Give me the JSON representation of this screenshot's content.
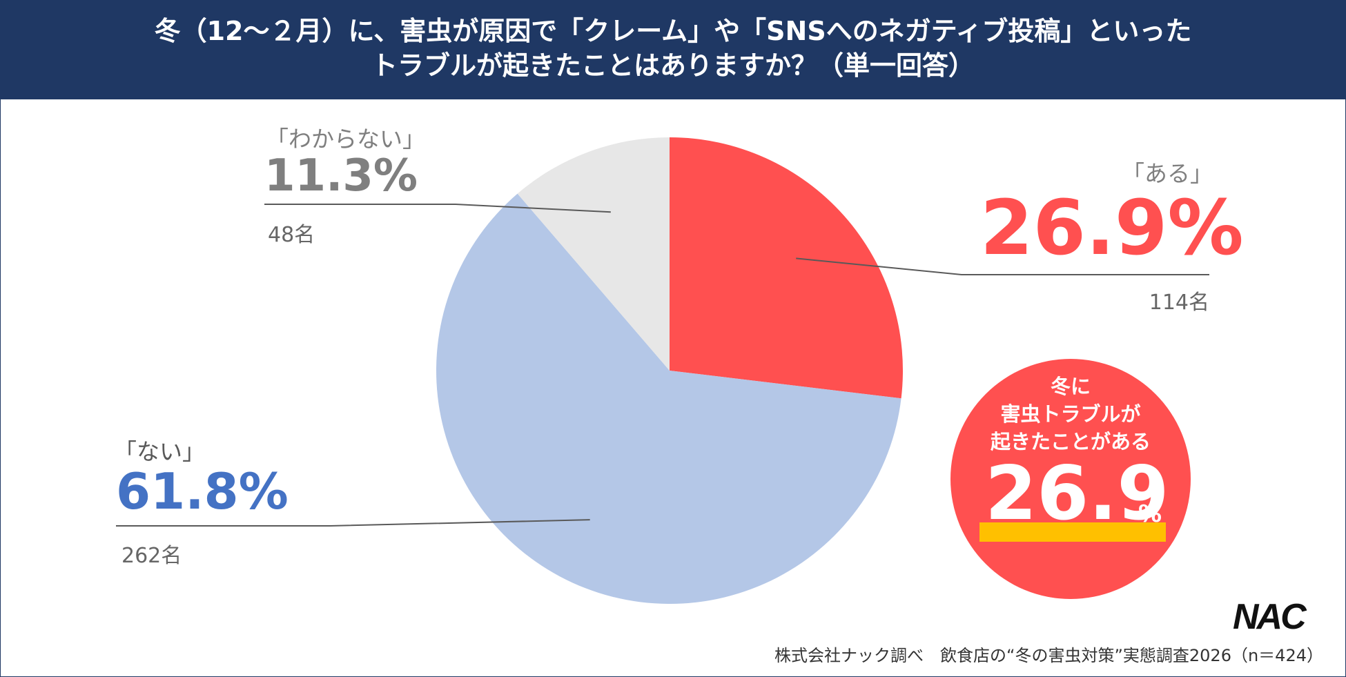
{
  "title": {
    "line1": "冬（12〜２月）に、害虫が原因で「クレーム」や「SNSへのネガティブ投稿」といった",
    "line2": "トラブルが起きたことはありますか？（単一回答）"
  },
  "chart_data": {
    "type": "pie",
    "title": "冬（12〜２月）に、害虫が原因で「クレーム」や「SNSへのネガティブ投稿」といったトラブルが起きたことはありますか？（単一回答）",
    "slices": [
      {
        "key": "aru",
        "label": "「ある」",
        "percent": 26.9,
        "percent_label": "26.9%",
        "count": 114,
        "count_label": "114名",
        "color": "#ff5050",
        "text_color": "#ff5050"
      },
      {
        "key": "nai",
        "label": "「ない」",
        "percent": 61.8,
        "percent_label": "61.8%",
        "count": 262,
        "count_label": "262名",
        "color": "#b4c7e7",
        "text_color": "#4472c4"
      },
      {
        "key": "dk",
        "label": "「わからない」",
        "percent": 11.3,
        "percent_label": "11.3%",
        "count": 48,
        "count_label": "48名",
        "color": "#e7e7e7",
        "text_color": "#7f7f7f"
      }
    ],
    "start": "12 o'clock",
    "direction": "clockwise",
    "n": 424
  },
  "badge": {
    "line1": "冬に",
    "line2": "害虫トラブルが",
    "line3": "起きたことがある",
    "value": "26.9",
    "unit": "%"
  },
  "logo": "NAC",
  "source": "株式会社ナック調べ　飲食店の“冬の害虫対策”実態調査2026（n＝424）",
  "colors": {
    "header_bg": "#1f3864",
    "accent": "#ff5050",
    "highlight": "#ffc000",
    "leader_line": "#595959"
  }
}
